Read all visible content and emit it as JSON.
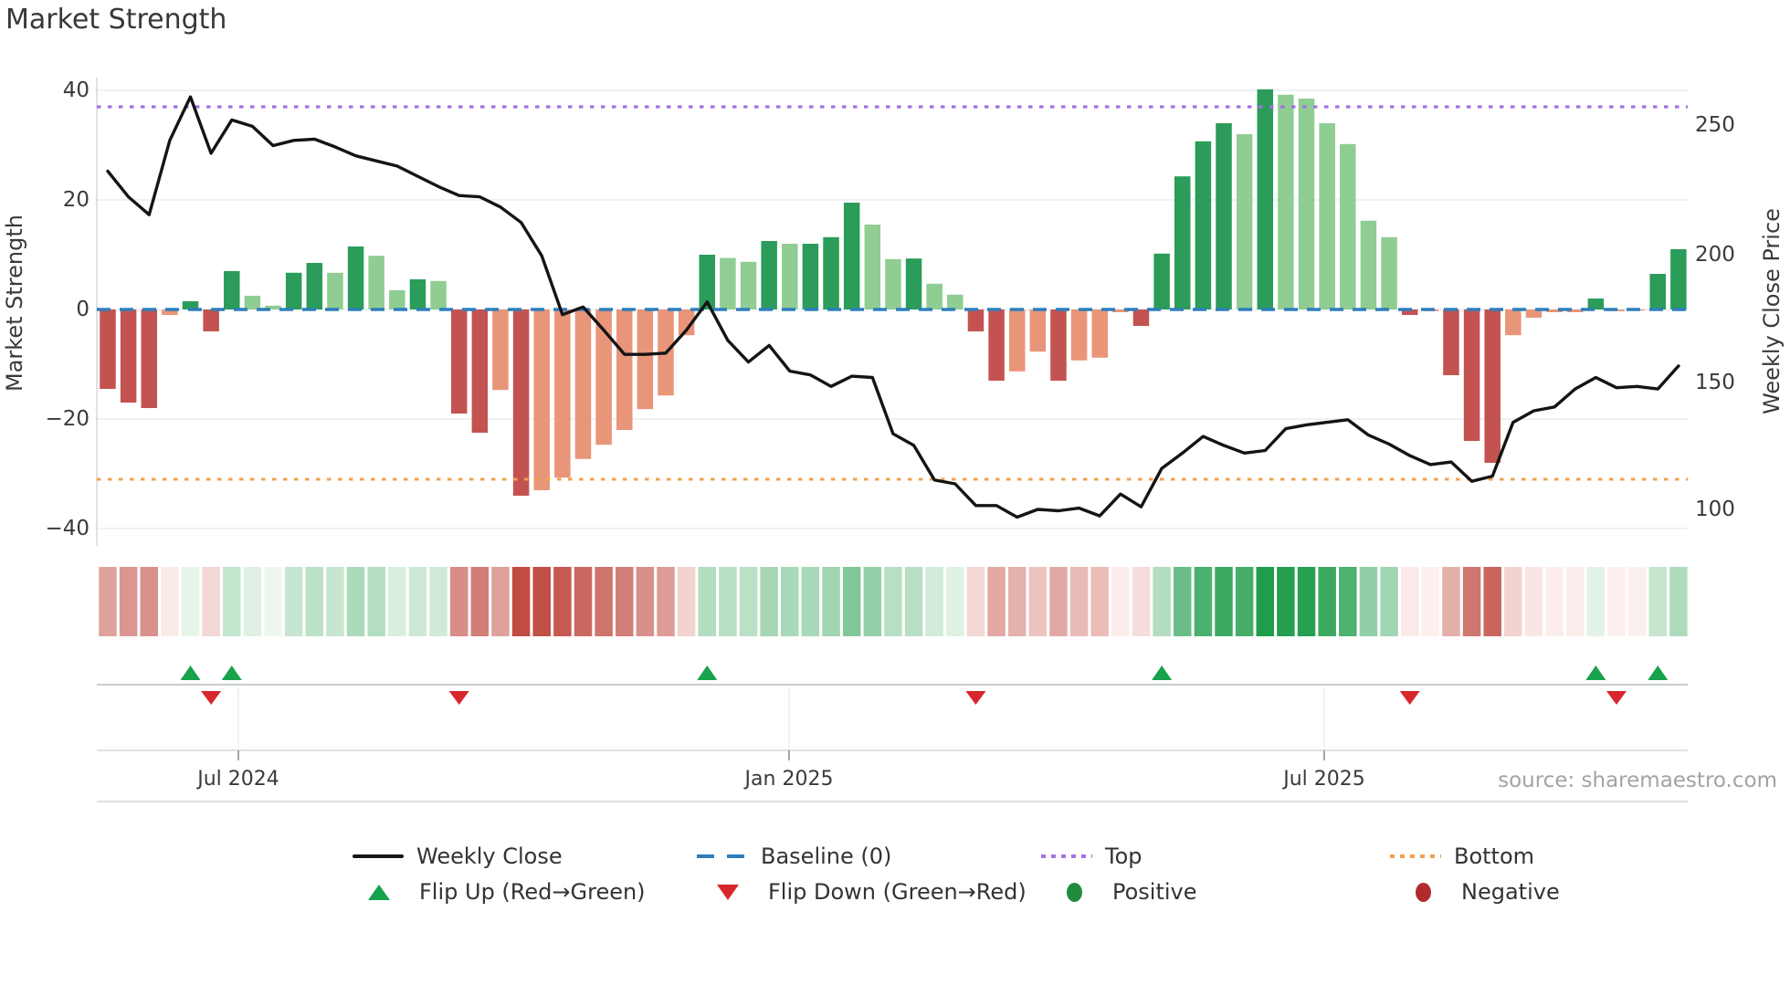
{
  "title": "Market Strength",
  "source": "source: sharemaestro.com",
  "axes": {
    "left_title": "Market Strength",
    "right_title": "Weekly Close Price",
    "left_ticks": [
      40,
      20,
      0,
      -20,
      -40
    ],
    "right_ticks": [
      250,
      200,
      150,
      100
    ],
    "x_tick_labels": [
      "Jul 2024",
      "Jan 2025",
      "Jul 2025"
    ]
  },
  "legend": {
    "weekly_close": "Weekly Close",
    "baseline": "Baseline (0)",
    "top": "Top",
    "bottom": "Bottom",
    "flip_up": "Flip Up (Red→Green)",
    "flip_down": "Flip Down (Green→Red)",
    "positive": "Positive",
    "negative": "Negative"
  },
  "colors": {
    "bar_green_dark": "#2b9c59",
    "bar_green_light": "#90cd92",
    "bar_red_dark": "#c35350",
    "bar_red_light": "#e99579",
    "line_black": "#141414",
    "baseline_blue": "#2e7ebc",
    "top_purple": "#a571e6",
    "bottom_orange": "#f0a14f",
    "marker_green": "#17a24b",
    "marker_red": "#d8262c",
    "grid": "#e9edf0",
    "spine": "#d2d6da",
    "heat_green_max": "#1f9c4a",
    "heat_red_max": "#bf4a41"
  },
  "chart_data": {
    "type": "bar",
    "subtype": "weekly strength bars + weekly close line + heatmap strip + flip markers",
    "weeks": 77,
    "title": "Market Strength",
    "xlabel": "",
    "ylabel_left": "Market Strength",
    "ylabel_right": "Weekly Close Price",
    "left_ylim": [
      -43,
      42
    ],
    "right_ylim": [
      95,
      258
    ],
    "baseline_value": 0,
    "top_line_value": 37,
    "bottom_line_value": -31,
    "strength": [
      -14.5,
      -17,
      -18,
      -1,
      1.5,
      -4,
      7,
      2.5,
      0.7,
      6.7,
      8.5,
      6.7,
      11.5,
      9.8,
      3.5,
      5.5,
      5.2,
      -19,
      -22.5,
      -14.7,
      -34,
      -33,
      -30.7,
      -27.3,
      -24.7,
      -22,
      -18.2,
      -15.7,
      -4.7,
      10,
      9.4,
      8.7,
      12.5,
      12,
      12,
      13.2,
      19.5,
      15.5,
      9.2,
      9.3,
      4.7,
      2.7,
      -4,
      -13,
      -11.3,
      -7.7,
      -13,
      -9.3,
      -8.8,
      -0.5,
      -3,
      10.2,
      24.3,
      30.7,
      34,
      32,
      40.2,
      39.2,
      38.5,
      34,
      30.2,
      16.2,
      13.2,
      -1,
      -0.3,
      -12,
      -24,
      -28,
      -4.7,
      -1.5,
      -0.5,
      -0.5,
      2,
      -0.3,
      -0.2,
      6.5,
      11
    ],
    "bar_shade": [
      "d",
      "d",
      "d",
      "l",
      "d",
      "d",
      "d",
      "l",
      "l",
      "d",
      "d",
      "l",
      "d",
      "l",
      "l",
      "d",
      "l",
      "d",
      "d",
      "l",
      "d",
      "l",
      "l",
      "l",
      "l",
      "l",
      "l",
      "l",
      "l",
      "d",
      "l",
      "l",
      "d",
      "l",
      "d",
      "d",
      "d",
      "l",
      "l",
      "d",
      "l",
      "l",
      "d",
      "d",
      "l",
      "l",
      "d",
      "l",
      "l",
      "l",
      "d",
      "d",
      "d",
      "d",
      "d",
      "l",
      "d",
      "l",
      "l",
      "l",
      "l",
      "l",
      "l",
      "d",
      "l",
      "d",
      "d",
      "d",
      "l",
      "l",
      "l",
      "l",
      "d",
      "l",
      "l",
      "d",
      "d"
    ],
    "weekly_close": [
      232,
      222,
      215,
      244,
      261,
      239,
      252,
      249.5,
      242,
      244,
      244.5,
      241.5,
      238,
      236,
      234,
      230,
      226,
      222.5,
      222,
      218,
      212,
      199,
      176,
      179,
      170,
      160.5,
      160.5,
      161,
      170,
      181,
      166,
      157.5,
      164,
      154,
      152.5,
      148,
      152,
      151.5,
      129.5,
      125,
      111.5,
      110,
      101.5,
      101.5,
      97,
      100,
      99.5,
      100.5,
      97.5,
      106,
      101,
      116,
      122,
      128.5,
      125,
      122,
      123,
      131.5,
      133,
      134,
      135,
      129,
      125.5,
      121,
      117.5,
      118.5,
      111,
      113,
      134,
      138.5,
      140,
      147,
      151.5,
      147.5,
      148,
      147,
      156
    ],
    "flip_up_weeks": [
      4,
      6,
      29,
      51,
      72,
      75
    ],
    "flip_down_weeks": [
      5,
      17,
      42,
      63,
      73
    ],
    "x_tick_weeks": [
      6.3,
      33.0,
      58.9
    ],
    "x_tick_labels": [
      "Jul 2024",
      "Jan 2025",
      "Jul 2025"
    ],
    "legend_entries": [
      "Weekly Close",
      "Baseline (0)",
      "Top",
      "Bottom",
      "Flip Up (Red→Green)",
      "Flip Down (Green→Red)",
      "Positive",
      "Negative"
    ],
    "grid": "horizontal only",
    "legend_position": "bottom center, two rows"
  }
}
